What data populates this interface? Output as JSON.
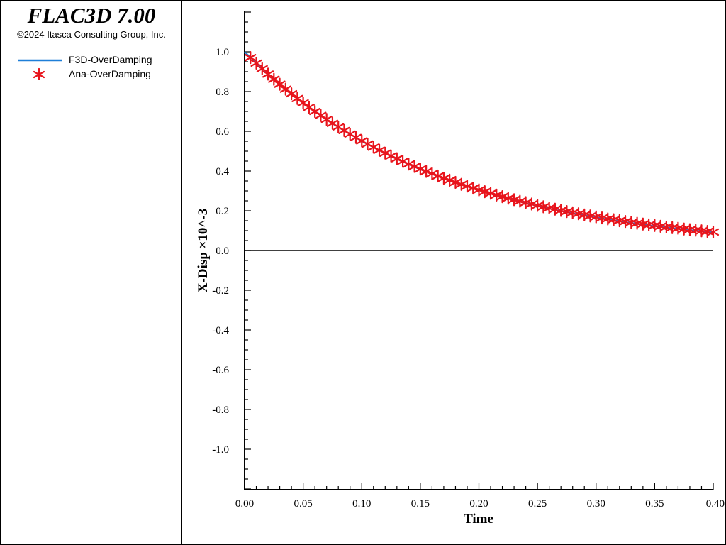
{
  "sidebar": {
    "title": "FLAC3D 7.00",
    "copyright": "©2024 Itasca Consulting Group, Inc.",
    "legend": [
      {
        "label": "F3D-OverDamping",
        "symbol": "line",
        "color": "#1e7fd8"
      },
      {
        "label": "Ana-OverDamping",
        "symbol": "asterisk",
        "color": "#e8141c"
      }
    ]
  },
  "chart_data": {
    "type": "line",
    "xlabel": "Time",
    "ylabel": "X-Disp ×10^-3",
    "xlim": [
      0.0,
      0.4
    ],
    "ylim": [
      -1.2,
      1.2
    ],
    "x_ticks": [
      "0.00",
      "0.05",
      "0.10",
      "0.15",
      "0.20",
      "0.25",
      "0.30",
      "0.35",
      "0.40"
    ],
    "y_ticks": [
      "1.0",
      "0.8",
      "0.6",
      "0.4",
      "0.2",
      "0.0",
      "-0.2",
      "-0.4",
      "-0.6",
      "-0.8",
      "-1.0"
    ],
    "grid": false,
    "legend_placement": "left-panel",
    "zero_line": true,
    "series": [
      {
        "name": "F3D-OverDamping",
        "style": "line",
        "color": "#1e7fd8",
        "x": [
          0.0,
          0.025,
          0.05,
          0.075,
          0.1,
          0.125,
          0.15,
          0.175,
          0.2,
          0.225,
          0.25,
          0.275,
          0.3,
          0.325,
          0.35,
          0.375,
          0.4
        ],
        "y": [
          1.0,
          0.861,
          0.742,
          0.639,
          0.55,
          0.474,
          0.408,
          0.351,
          0.303,
          0.261,
          0.224,
          0.193,
          0.167,
          0.143,
          0.123,
          0.106,
          0.092
        ]
      },
      {
        "name": "Ana-OverDamping",
        "style": "asterisk",
        "color": "#e8141c",
        "x": [
          0.005,
          0.01,
          0.015,
          0.02,
          0.025,
          0.03,
          0.035,
          0.04,
          0.045,
          0.05,
          0.055,
          0.06,
          0.065,
          0.07,
          0.075,
          0.08,
          0.085,
          0.09,
          0.095,
          0.1,
          0.105,
          0.11,
          0.115,
          0.12,
          0.125,
          0.13,
          0.135,
          0.14,
          0.145,
          0.15,
          0.155,
          0.16,
          0.165,
          0.17,
          0.175,
          0.18,
          0.185,
          0.19,
          0.195,
          0.2,
          0.205,
          0.21,
          0.215,
          0.22,
          0.225,
          0.23,
          0.235,
          0.24,
          0.245,
          0.25,
          0.255,
          0.26,
          0.265,
          0.27,
          0.275,
          0.28,
          0.285,
          0.29,
          0.295,
          0.3,
          0.305,
          0.31,
          0.315,
          0.32,
          0.325,
          0.33,
          0.335,
          0.34,
          0.345,
          0.35,
          0.355,
          0.36,
          0.365,
          0.37,
          0.375,
          0.38,
          0.385,
          0.39,
          0.395,
          0.4
        ],
        "y": [
          0.971,
          0.943,
          0.915,
          0.888,
          0.862,
          0.837,
          0.812,
          0.789,
          0.765,
          0.743,
          0.721,
          0.7,
          0.68,
          0.66,
          0.64,
          0.622,
          0.604,
          0.586,
          0.569,
          0.552,
          0.536,
          0.52,
          0.505,
          0.49,
          0.476,
          0.462,
          0.449,
          0.435,
          0.423,
          0.41,
          0.398,
          0.387,
          0.375,
          0.364,
          0.354,
          0.343,
          0.333,
          0.324,
          0.314,
          0.305,
          0.296,
          0.288,
          0.279,
          0.271,
          0.263,
          0.256,
          0.248,
          0.241,
          0.234,
          0.227,
          0.22,
          0.214,
          0.208,
          0.202,
          0.196,
          0.19,
          0.185,
          0.179,
          0.174,
          0.169,
          0.164,
          0.159,
          0.155,
          0.15,
          0.146,
          0.141,
          0.137,
          0.133,
          0.129,
          0.126,
          0.122,
          0.118,
          0.115,
          0.112,
          0.108,
          0.105,
          0.102,
          0.099,
          0.096,
          0.093
        ]
      }
    ]
  }
}
